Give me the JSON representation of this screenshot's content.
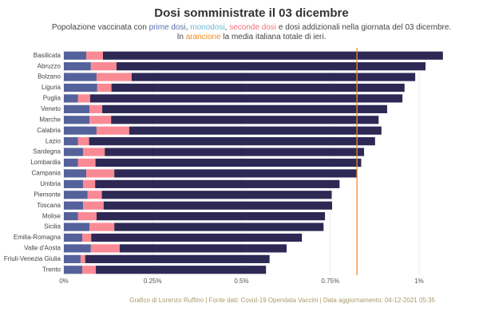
{
  "chart_data": {
    "type": "stacked_barh",
    "title": "Dosi somministrate il 03 dicembre",
    "subtitle": [
      [
        {
          "text": "Popolazione vaccinata con "
        },
        {
          "text": "prime dosi",
          "color": "#5b6fae"
        },
        {
          "text": ", "
        },
        {
          "text": "monodosi",
          "color": "#6fb7d6"
        },
        {
          "text": ", "
        },
        {
          "text": "seconde dosi",
          "color": "#f0707e"
        },
        {
          "text": " e dosi addizionali nella giornata del 03 dicembre."
        }
      ],
      [
        {
          "text": "In "
        },
        {
          "text": "arancione",
          "color": "#f08a24"
        },
        {
          "text": " la media italiana totale di ieri."
        }
      ]
    ],
    "caption": "Grafico di Lorenzo Ruffino | Fonte dati: Covid-19 Opendata Vaccini | Data aggiornamento: 04-12-2021 05:35",
    "categories": [
      "Basilicata",
      "Abruzzo",
      "Bolzano",
      "Liguria",
      "Puglia",
      "Veneto",
      "Marche",
      "Calabria",
      "Lazio",
      "Sardegna",
      "Lombardia",
      "Campania",
      "Umbria",
      "Piemonte",
      "Toscana",
      "Molise",
      "Sicilia",
      "Emilia-Romagna",
      "Valle d'Aosta",
      "Friuli-Venezia Giulia",
      "Trento"
    ],
    "series": [
      {
        "name": "prime dosi",
        "color": "#55619a",
        "values": [
          0.063,
          0.076,
          0.092,
          0.094,
          0.04,
          0.072,
          0.072,
          0.092,
          0.04,
          0.054,
          0.04,
          0.063,
          0.054,
          0.067,
          0.054,
          0.04,
          0.072,
          0.052,
          0.076,
          0.047,
          0.052
        ]
      },
      {
        "name": "monodosi",
        "color": "#7ec8e3",
        "values": [
          0,
          0,
          0,
          0,
          0,
          0,
          0,
          0,
          0,
          0,
          0,
          0,
          0,
          0,
          0,
          0,
          0,
          0,
          0,
          0,
          0
        ]
      },
      {
        "name": "seconde dosi",
        "color": "#f98a94",
        "values": [
          0.047,
          0.072,
          0.099,
          0.04,
          0.034,
          0.036,
          0.061,
          0.092,
          0.031,
          0.061,
          0.049,
          0.079,
          0.034,
          0.04,
          0.058,
          0.052,
          0.07,
          0.025,
          0.081,
          0.013,
          0.038
        ]
      },
      {
        "name": "dosi addizionali",
        "color": "#2d2854",
        "values": [
          0.957,
          0.87,
          0.798,
          0.825,
          0.879,
          0.802,
          0.753,
          0.71,
          0.805,
          0.73,
          0.748,
          0.683,
          0.688,
          0.647,
          0.643,
          0.643,
          0.589,
          0.593,
          0.47,
          0.519,
          0.479
        ]
      }
    ],
    "reference_line": {
      "value": 0.825,
      "color": "#f08a24"
    },
    "xlim": [
      0,
      1.1
    ],
    "xticks": [
      {
        "value": 0,
        "label": "0%"
      },
      {
        "value": 0.25,
        "label": "0.25%"
      },
      {
        "value": 0.5,
        "label": "0.5%"
      },
      {
        "value": 0.75,
        "label": "0.75%"
      },
      {
        "value": 1,
        "label": "1%"
      }
    ],
    "grid": true
  }
}
